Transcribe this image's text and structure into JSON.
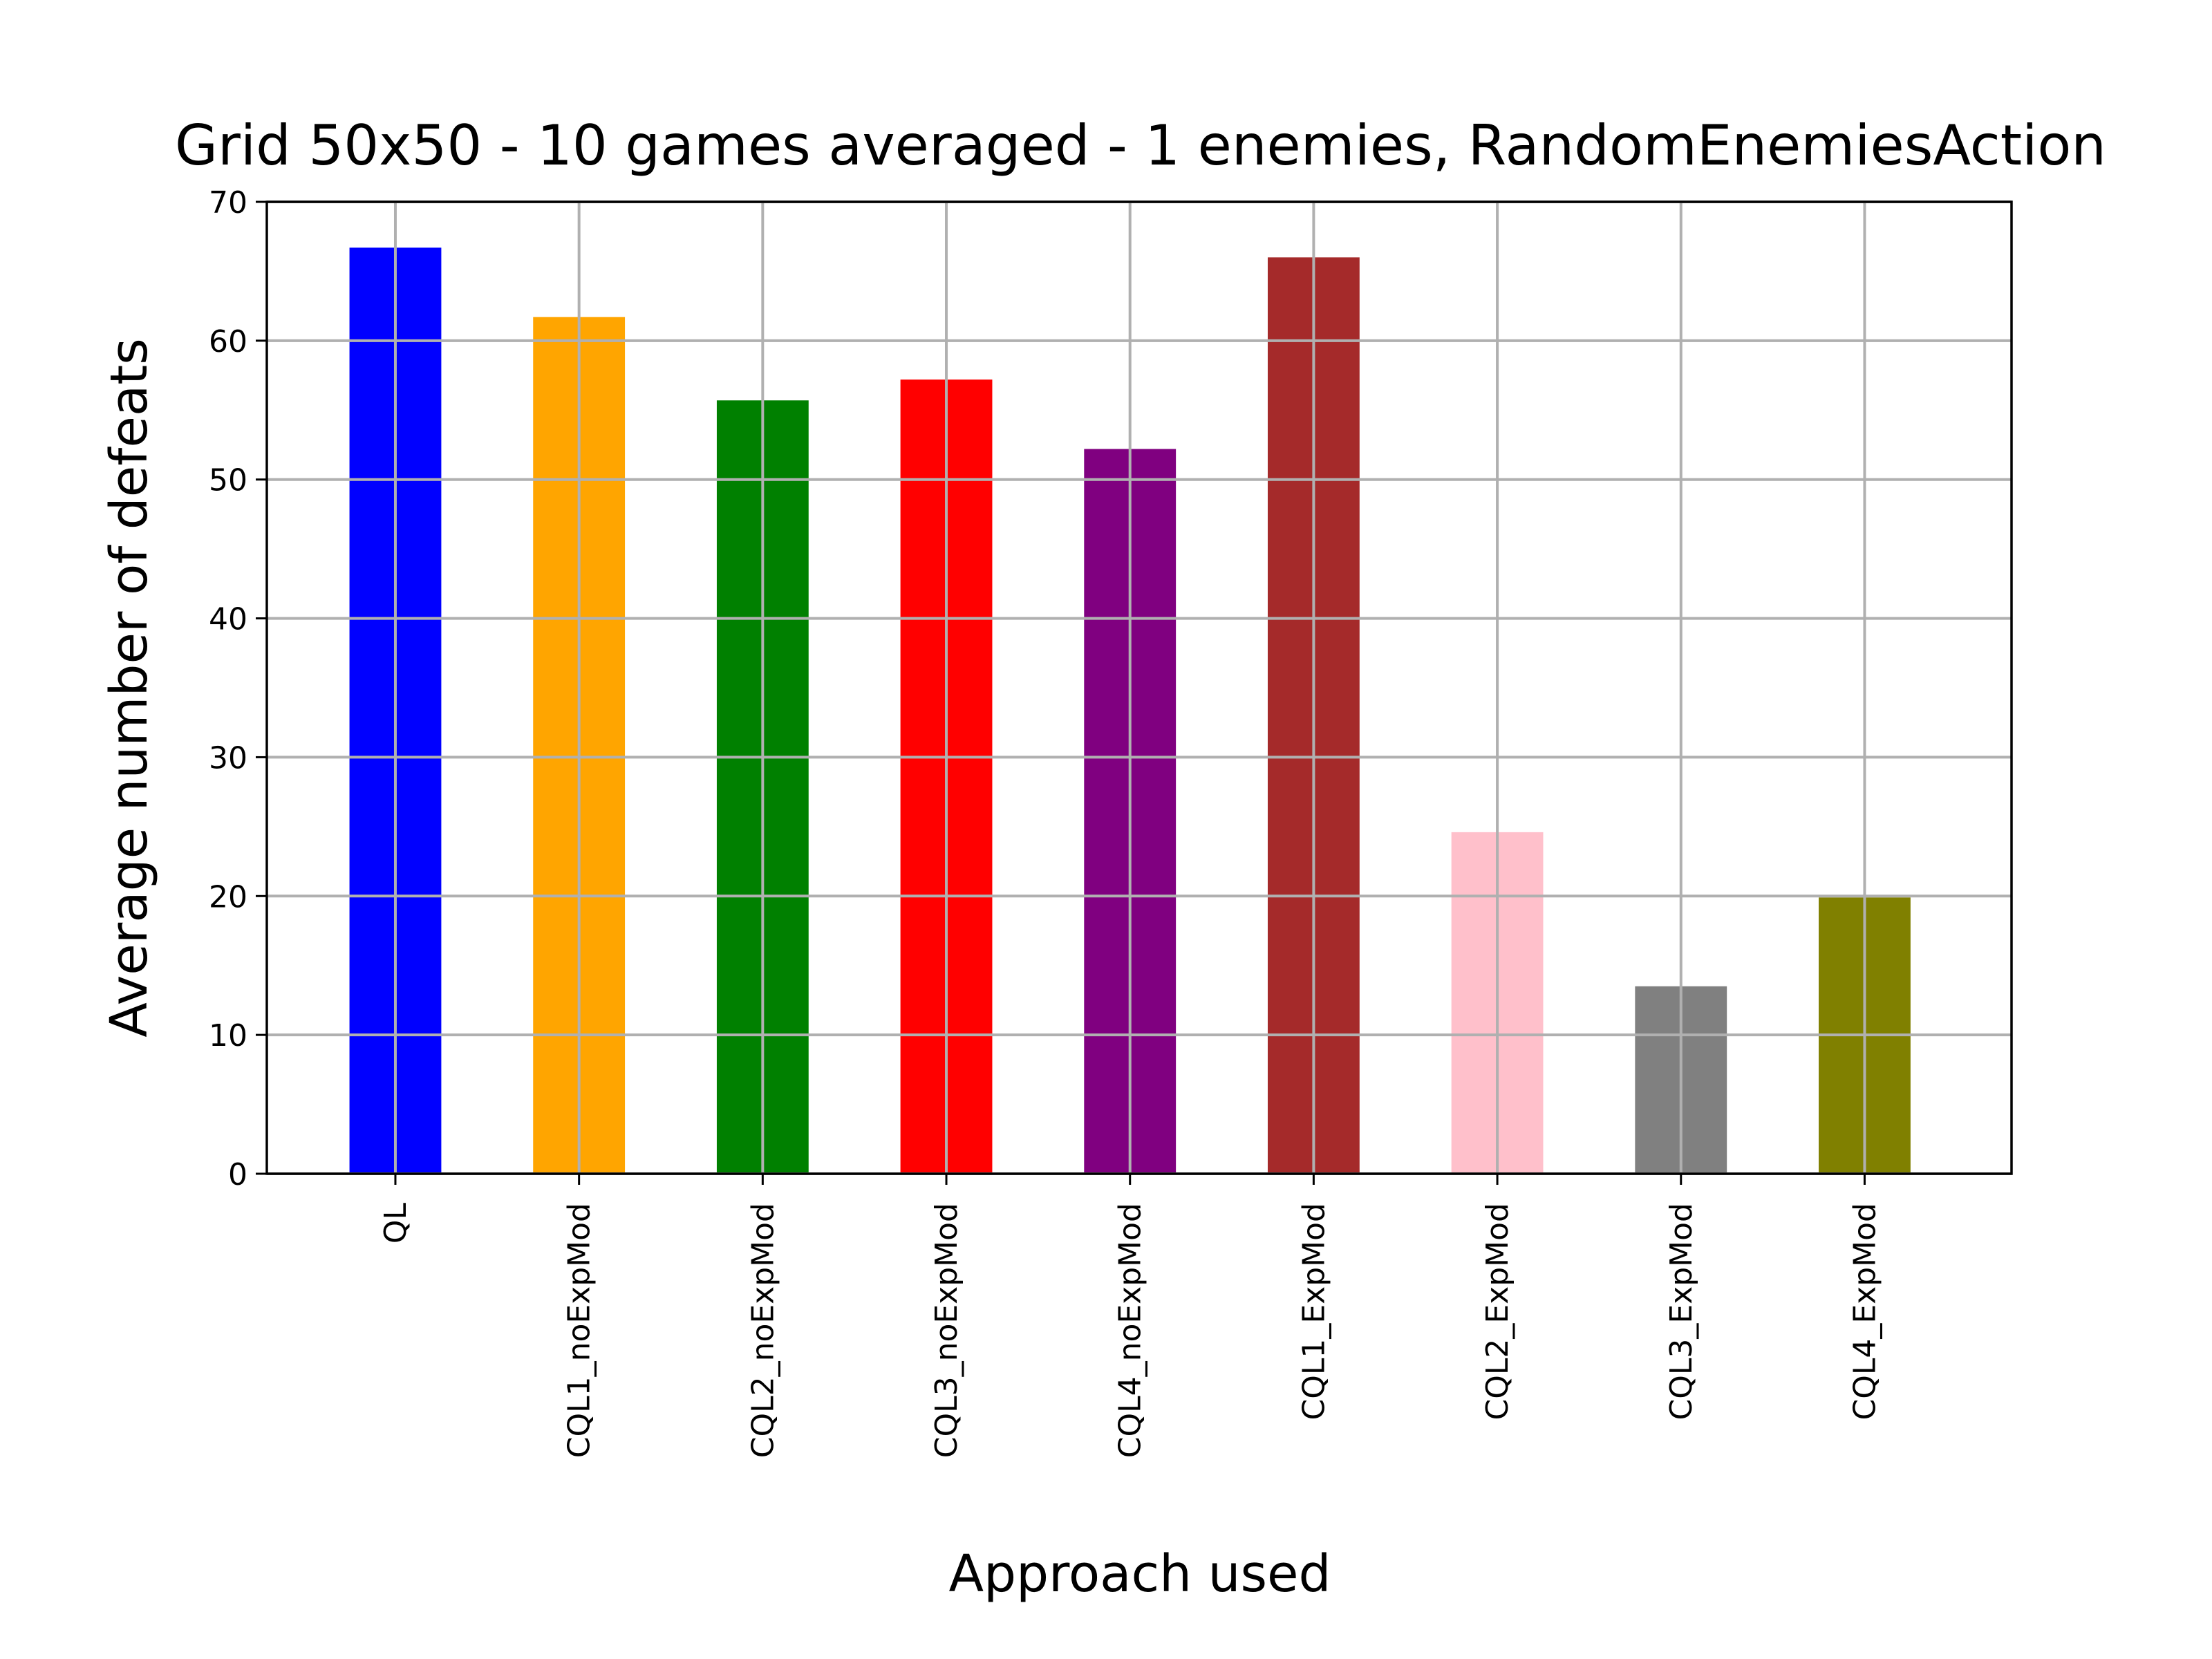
{
  "chart_data": {
    "type": "bar",
    "title": "Grid 50x50 - 10 games averaged - 1 enemies, RandomEnemiesAction",
    "xlabel": "Approach used",
    "ylabel": "Average number of defeats",
    "categories": [
      "QL",
      "CQL1_noExpMod",
      "CQL2_noExpMod",
      "CQL3_noExpMod",
      "CQL4_noExpMod",
      "CQL1_ExpMod",
      "CQL2_ExpMod",
      "CQL3_ExpMod",
      "CQL4_ExpMod"
    ],
    "values": [
      66.7,
      61.7,
      55.7,
      57.2,
      52.2,
      66.0,
      24.6,
      13.5,
      19.9
    ],
    "colors": [
      "#0000ff",
      "#ffa500",
      "#008000",
      "#ff0000",
      "#800080",
      "#a52a2a",
      "#ffc0cb",
      "#808080",
      "#808000"
    ],
    "ylim": [
      0,
      70
    ],
    "yticks": [
      "0",
      "10",
      "20",
      "30",
      "40",
      "50",
      "60",
      "70"
    ],
    "grid": true,
    "legend": "none"
  }
}
